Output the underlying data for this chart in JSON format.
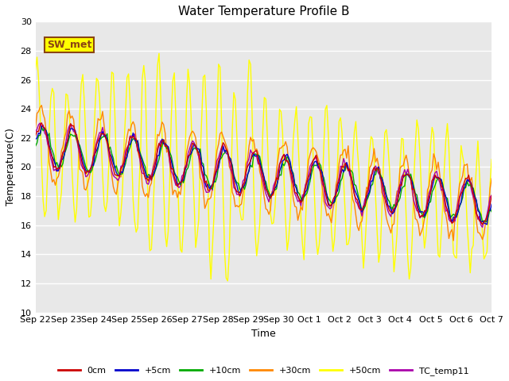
{
  "title": "Water Temperature Profile B",
  "xlabel": "Time",
  "ylabel": "Temperature(C)",
  "ylim": [
    10,
    30
  ],
  "bg_color": "#e8e8e8",
  "fig_color": "#ffffff",
  "annotation_text": "SW_met",
  "annotation_bg": "#ffff00",
  "annotation_border": "#8B4513",
  "series_colors": {
    "0cm": "#cc0000",
    "+5cm": "#0000cc",
    "+10cm": "#00aa00",
    "+30cm": "#ff8800",
    "+50cm": "#ffff00",
    "TC_temp11": "#aa00aa"
  },
  "tick_labels": [
    "Sep 22",
    "Sep 23",
    "Sep 24",
    "Sep 25",
    "Sep 26",
    "Sep 27",
    "Sep 28",
    "Sep 29",
    "Sep 30",
    "Oct 1",
    "Oct 2",
    "Oct 3",
    "Oct 4",
    "Oct 5",
    "Oct 6",
    "Oct 7"
  ],
  "line_width": 1.0,
  "grid_color": "#ffffff",
  "title_fontsize": 11,
  "axis_fontsize": 9,
  "tick_fontsize": 8,
  "legend_fontsize": 8
}
